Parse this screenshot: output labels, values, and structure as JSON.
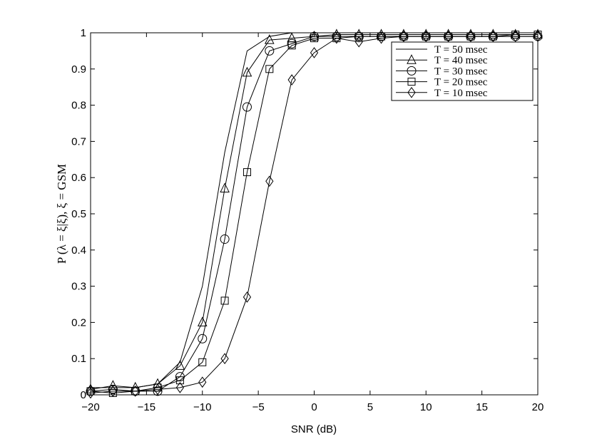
{
  "chart_data": {
    "type": "line",
    "title": "",
    "xlabel": "SNR (dB)",
    "ylabel": "P (λ = ξ|ξ), ξ = GSM",
    "xlim": [
      -20,
      20
    ],
    "ylim": [
      0,
      1
    ],
    "xticks": [
      "−20",
      "−15",
      "−10",
      "−5",
      "0",
      "5",
      "10",
      "15",
      "20"
    ],
    "yticks": [
      "0",
      "0.1",
      "0.2",
      "0.3",
      "0.4",
      "0.5",
      "0.6",
      "0.7",
      "0.8",
      "0.9",
      "1"
    ],
    "grid": false,
    "legend_position": "top-right",
    "x": [
      -20,
      -18,
      -16,
      -14,
      -12,
      -10,
      -8,
      -6,
      -4,
      -2,
      0,
      2,
      4,
      6,
      8,
      10,
      12,
      14,
      16,
      18,
      20
    ],
    "series": [
      {
        "name": "T = 50 msec",
        "marker": "none",
        "values": [
          0.02,
          0.02,
          0.02,
          0.03,
          0.09,
          0.3,
          0.67,
          0.95,
          0.99,
          1.0,
          1.0,
          1.0,
          1.0,
          1.0,
          1.0,
          1.0,
          1.0,
          1.0,
          1.0,
          1.0,
          1.0
        ]
      },
      {
        "name": "T = 40 msec",
        "marker": "triangle",
        "values": [
          0.015,
          0.025,
          0.02,
          0.03,
          0.08,
          0.2,
          0.57,
          0.89,
          0.98,
          0.985,
          0.99,
          0.995,
          0.995,
          0.995,
          0.995,
          0.995,
          0.995,
          0.995,
          0.995,
          0.995,
          0.995
        ]
      },
      {
        "name": "T = 30 msec",
        "marker": "circle",
        "values": [
          0.01,
          0.015,
          0.01,
          0.01,
          0.05,
          0.155,
          0.43,
          0.795,
          0.95,
          0.97,
          0.99,
          0.99,
          0.99,
          0.99,
          0.99,
          0.99,
          0.99,
          0.99,
          0.99,
          0.99,
          0.99
        ]
      },
      {
        "name": "T = 20 msec",
        "marker": "square",
        "values": [
          0.01,
          0.005,
          0.01,
          0.02,
          0.04,
          0.09,
          0.26,
          0.615,
          0.9,
          0.965,
          0.985,
          0.985,
          0.99,
          0.99,
          0.99,
          0.99,
          0.99,
          0.99,
          0.99,
          0.995,
          0.995
        ]
      },
      {
        "name": "T = 10 msec",
        "marker": "diamond",
        "values": [
          0.005,
          0.01,
          0.01,
          0.015,
          0.02,
          0.035,
          0.1,
          0.27,
          0.59,
          0.87,
          0.945,
          0.985,
          0.975,
          0.985,
          0.99,
          0.99,
          0.99,
          0.99,
          0.99,
          0.99,
          0.99
        ]
      }
    ]
  }
}
